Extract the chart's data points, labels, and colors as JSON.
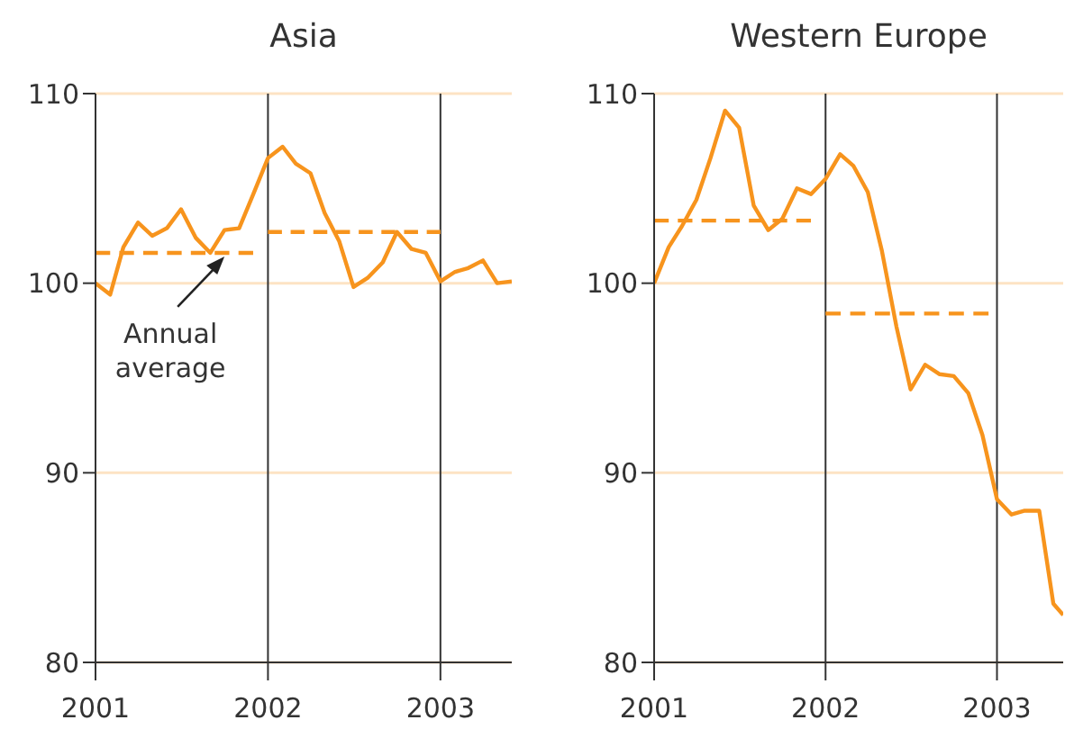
{
  "chart_data": [
    {
      "type": "line",
      "title": "Asia",
      "xlim": [
        "2001-01",
        "2003-06"
      ],
      "ylim": [
        80,
        110
      ],
      "yticks": [
        80,
        90,
        100,
        110
      ],
      "xticks": [
        {
          "value": "2001-01",
          "label": "2001"
        },
        {
          "value": "2002-01",
          "label": "2002"
        },
        {
          "value": "2003-01",
          "label": "2003"
        }
      ],
      "grid": "y",
      "marker": "none",
      "ref_lines": [
        {
          "axis": "x",
          "value": "2002-01",
          "color": "#333333"
        },
        {
          "axis": "x",
          "value": "2003-01",
          "color": "#333333"
        }
      ],
      "annotations": [
        {
          "text": "Annual average",
          "x": "2001-10",
          "y": 101.6
        }
      ],
      "series": [
        {
          "color": "#f7941d",
          "line_style": "solid",
          "x": [
            "2001-01",
            "2001-02",
            "2001-03",
            "2001-04",
            "2001-05",
            "2001-06",
            "2001-07",
            "2001-08",
            "2001-09",
            "2001-10",
            "2001-11",
            "2001-12",
            "2002-01",
            "2002-02",
            "2002-03",
            "2002-04",
            "2002-05",
            "2002-06",
            "2002-07",
            "2002-08",
            "2002-09",
            "2002-10",
            "2002-11",
            "2002-12",
            "2003-01",
            "2003-02",
            "2003-03",
            "2003-04",
            "2003-05",
            "2003-06"
          ],
          "values": [
            100.0,
            99.4,
            101.9,
            103.2,
            102.5,
            102.9,
            103.9,
            102.4,
            101.6,
            102.8,
            102.9,
            104.7,
            106.6,
            107.2,
            106.3,
            105.8,
            103.7,
            102.2,
            99.8,
            100.3,
            101.1,
            102.7,
            101.8,
            101.6,
            100.1,
            100.6,
            100.8,
            101.2,
            100.0,
            100.1
          ]
        },
        {
          "type": "line",
          "color": "#f7941d",
          "line_style": "dashed",
          "x": [
            "2001-01",
            "2001-12"
          ],
          "values": [
            101.6,
            101.6
          ]
        },
        {
          "type": "line",
          "color": "#f7941d",
          "line_style": "dashed",
          "x": [
            "2002-01",
            "2003-01"
          ],
          "values": [
            102.7,
            102.7
          ]
        }
      ]
    },
    {
      "type": "line",
      "title": "Western Europe",
      "xlim": [
        "2001-01",
        "2003-05-22"
      ],
      "ylim": [
        80,
        110
      ],
      "yticks": [
        80,
        90,
        100,
        110
      ],
      "xticks": [
        {
          "value": "2001-01",
          "label": "2001"
        },
        {
          "value": "2002-01",
          "label": "2002"
        },
        {
          "value": "2003-01",
          "label": "2003"
        }
      ],
      "grid": "y",
      "marker": "none",
      "ref_lines": [
        {
          "axis": "x",
          "value": "2002-01",
          "color": "#333333"
        },
        {
          "axis": "x",
          "value": "2003-01",
          "color": "#333333"
        }
      ],
      "series": [
        {
          "color": "#f7941d",
          "line_style": "solid",
          "x": [
            "2001-01",
            "2001-02",
            "2001-03",
            "2001-04",
            "2001-05",
            "2001-06",
            "2001-07",
            "2001-08",
            "2001-09",
            "2001-10",
            "2001-11",
            "2001-12",
            "2002-01",
            "2002-02",
            "2002-03",
            "2002-04",
            "2002-05",
            "2002-06",
            "2002-07",
            "2002-08",
            "2002-09",
            "2002-10",
            "2002-11",
            "2002-12",
            "2003-01",
            "2003-02",
            "2003-03",
            "2003-04",
            "2003-05",
            "2003-05-22"
          ],
          "values": [
            100.0,
            101.9,
            103.0,
            104.4,
            106.6,
            109.1,
            108.2,
            104.1,
            102.8,
            103.4,
            105.0,
            104.7,
            105.5,
            106.8,
            106.2,
            104.8,
            101.7,
            97.7,
            94.4,
            95.7,
            95.2,
            95.1,
            94.2,
            92.0,
            88.6,
            87.8,
            88.0,
            88.0,
            83.1,
            82.5
          ]
        },
        {
          "type": "line",
          "color": "#f7941d",
          "line_style": "dashed",
          "x": [
            "2001-01",
            "2001-12"
          ],
          "values": [
            103.3,
            103.3
          ]
        },
        {
          "type": "line",
          "color": "#f7941d",
          "line_style": "dashed",
          "x": [
            "2002-01",
            "2002-12-15"
          ],
          "values": [
            98.4,
            98.4
          ]
        }
      ]
    }
  ]
}
